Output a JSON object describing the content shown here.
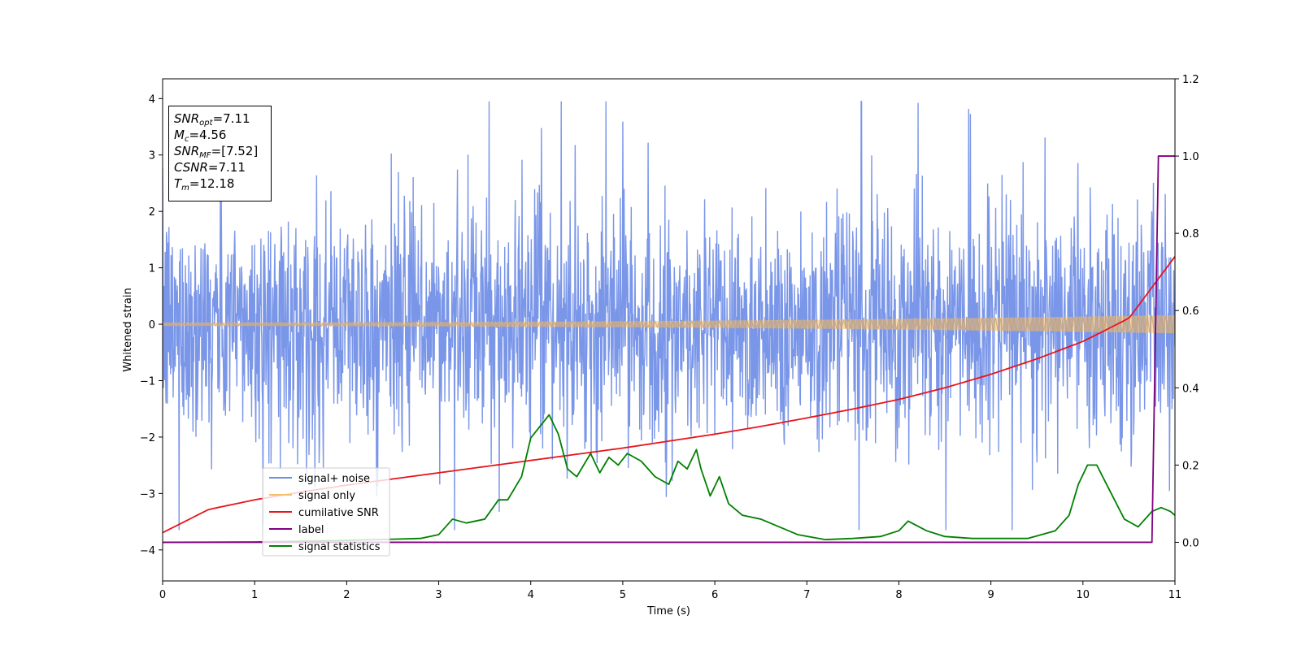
{
  "annotation": {
    "lines": [
      {
        "sym": "SNR",
        "sub": "opt",
        "rest": "=7.11"
      },
      {
        "sym": "M",
        "sub": "c",
        "rest": "=4.56"
      },
      {
        "sym": "SNR",
        "sub": "MF",
        "rest": "=[7.52]"
      },
      {
        "sym": "CSNR",
        "sub": "",
        "rest": "=7.11"
      },
      {
        "sym": "T",
        "sub": "m",
        "rest": "=12.18"
      }
    ]
  },
  "chart_data": {
    "type": "line",
    "xlabel": "Time (s)",
    "ylabel": "Whitened strain",
    "xlim": [
      0,
      11
    ],
    "ylim_left": [
      -4.55,
      4.35
    ],
    "ylim_right": [
      -0.1,
      1.2
    ],
    "xticks": [
      0,
      1,
      2,
      3,
      4,
      5,
      6,
      7,
      8,
      9,
      10,
      11
    ],
    "yticks_left": [
      -4,
      -3,
      -2,
      -1,
      0,
      1,
      2,
      3,
      4
    ],
    "yticks_right": [
      0.0,
      0.2,
      0.4,
      0.6,
      0.8,
      1.0,
      1.2
    ],
    "yticks_left_labels": [
      "−4",
      "−3",
      "−2",
      "−1",
      "0",
      "1",
      "2",
      "3",
      "4"
    ],
    "yticks_right_labels": [
      "0.0",
      "0.2",
      "0.4",
      "0.6",
      "0.8",
      "1.0",
      "1.2"
    ],
    "legend_position": "lower-left",
    "grid": false,
    "series": [
      {
        "name": "signal+ noise",
        "axis": "left",
        "color": "#6f8de6",
        "kind": "noise",
        "envelope_max": 3.95,
        "envelope_min": -3.65
      },
      {
        "name": "signal only",
        "axis": "left",
        "color": "#f4c06a",
        "kind": "chirp",
        "amplitude_start": 0.03,
        "amplitude_end": 0.16
      },
      {
        "name": "cumilative SNR",
        "axis": "right",
        "color": "#e8141c",
        "x": [
          0,
          0.5,
          1,
          1.5,
          2,
          2.5,
          3,
          3.5,
          4,
          4.5,
          5,
          5.5,
          6,
          6.5,
          7,
          7.5,
          8,
          8.5,
          9,
          9.5,
          10,
          10.5,
          11
        ],
        "y": [
          0.025,
          0.085,
          0.11,
          0.13,
          0.148,
          0.164,
          0.18,
          0.196,
          0.212,
          0.228,
          0.244,
          0.262,
          0.28,
          0.3,
          0.322,
          0.345,
          0.37,
          0.4,
          0.435,
          0.475,
          0.52,
          0.58,
          0.74
        ]
      },
      {
        "name": "label",
        "axis": "right",
        "color": "#800080",
        "x": [
          0,
          10.75,
          10.82,
          11
        ],
        "y": [
          0,
          0,
          1,
          1
        ]
      },
      {
        "name": "signal statistics",
        "axis": "right",
        "color": "#008000",
        "x": [
          0,
          1,
          2,
          2.5,
          2.8,
          3.0,
          3.15,
          3.3,
          3.5,
          3.65,
          3.75,
          3.9,
          4.0,
          4.1,
          4.2,
          4.3,
          4.4,
          4.5,
          4.65,
          4.75,
          4.85,
          4.95,
          5.05,
          5.2,
          5.35,
          5.5,
          5.6,
          5.7,
          5.8,
          5.85,
          5.95,
          6.05,
          6.15,
          6.3,
          6.5,
          6.7,
          6.9,
          7.2,
          7.5,
          7.8,
          8.0,
          8.1,
          8.3,
          8.5,
          8.8,
          9.1,
          9.4,
          9.7,
          9.85,
          9.95,
          10.05,
          10.15,
          10.3,
          10.45,
          10.6,
          10.75,
          10.85,
          10.95,
          11.0
        ],
        "y": [
          0.0,
          0.001,
          0.005,
          0.008,
          0.01,
          0.02,
          0.06,
          0.05,
          0.06,
          0.11,
          0.11,
          0.17,
          0.27,
          0.3,
          0.33,
          0.28,
          0.19,
          0.17,
          0.23,
          0.18,
          0.22,
          0.2,
          0.23,
          0.21,
          0.17,
          0.15,
          0.21,
          0.19,
          0.24,
          0.19,
          0.12,
          0.17,
          0.1,
          0.07,
          0.06,
          0.04,
          0.02,
          0.007,
          0.01,
          0.015,
          0.03,
          0.055,
          0.03,
          0.015,
          0.01,
          0.01,
          0.01,
          0.03,
          0.07,
          0.15,
          0.2,
          0.2,
          0.13,
          0.06,
          0.04,
          0.08,
          0.09,
          0.08,
          0.07
        ]
      }
    ]
  }
}
